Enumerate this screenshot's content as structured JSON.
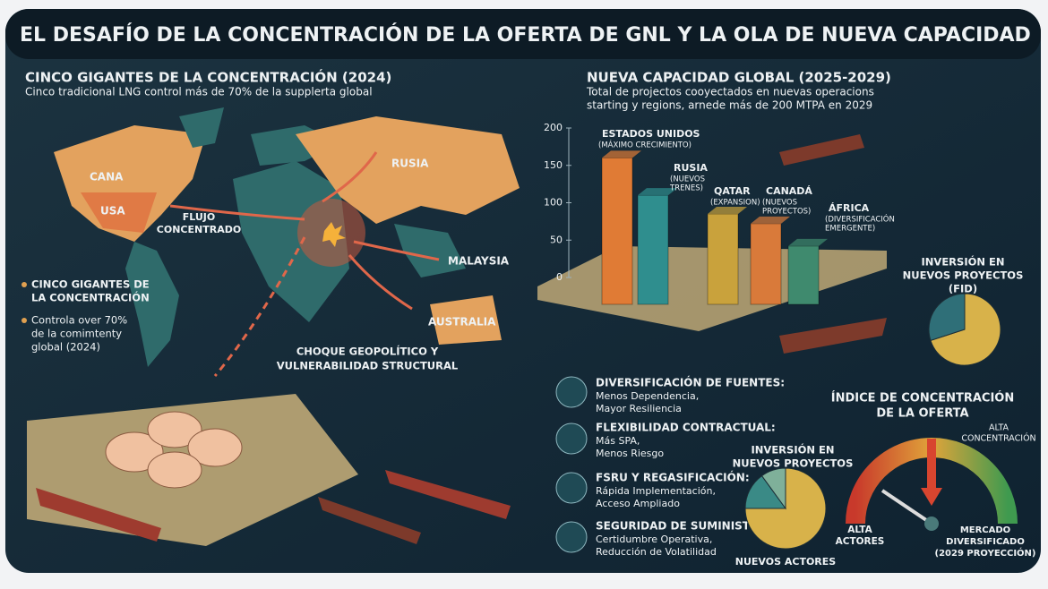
{
  "title": "EL DESAFÍO DE LA CONCENTRACIÓN DE LA OFERTA DE GNL Y LA OLA DE NUEVA CAPACIDAD",
  "left": {
    "heading": "CINCO GIGANTES DE LA CONCENTRACIÓN (2024)",
    "subtitle": "Cinco tradicional LNG control más de  70% de la supplerta global",
    "map_labels": [
      "CANA",
      "USA",
      "RUSIA",
      "MALAYSIA",
      "AUSTRALIA"
    ],
    "flow_label": [
      "FLUJO",
      "CONCENTRADO"
    ],
    "bullets": [
      [
        "CINCO GIGANTES DE",
        "LA CONCENTRACIÓN"
      ],
      [
        "Controla over 70%",
        "de la comimtenty",
        "global (2024)"
      ]
    ],
    "shock_label": [
      "CHOQUE GEOPOLÍTICO Y",
      "VULNERABILIDAD STRUCTURAL"
    ]
  },
  "right": {
    "heading": "NUEVA CAPACIDAD GLOBAL (2025-2029)",
    "subtitle": [
      "Total de projectos cooyectados en nuevas operacions",
      "starting y regions, arnede más de 200 MTPA en 2029"
    ],
    "chart": {
      "type": "bar",
      "categories": [
        "ESTADOS UNIDOS",
        "RUSIA",
        "QATAR",
        "CANADÁ",
        "ÁFRICA"
      ],
      "notes": [
        [
          "(MÁXIMO CRECIMIENTO)"
        ],
        [
          "(NUEVOS",
          "TRENES)"
        ],
        [
          "(EXPANSION)"
        ],
        [
          "(NUEVOS",
          "PROYECTOS)"
        ],
        [
          "(DIVERSIFICACIÓN",
          "EMERGENTE)"
        ]
      ],
      "values": [
        160,
        110,
        85,
        72,
        42
      ],
      "colors": [
        "#e07b35",
        "#2f8e8e",
        "#c9a23c",
        "#d97a3a",
        "#3f8a6e"
      ],
      "ylim": [
        0,
        200
      ],
      "yticks": [
        0,
        50,
        100,
        150,
        200
      ]
    },
    "features": [
      {
        "title": "DIVERSIFICACIÓN DE FUENTES:",
        "lines": [
          "Menos Dependencia,",
          "Mayor Resiliencia"
        ]
      },
      {
        "title": "FLEXIBILIDAD CONTRACTUAL:",
        "lines": [
          "Más SPA,",
          "Menos Riesgo"
        ]
      },
      {
        "title": "FSRU Y REGASIFICACIÓN:",
        "lines": [
          "Rápida Implementación,",
          "Acceso Ampliado"
        ]
      },
      {
        "title": "SEGURIDAD DE SUMINISTRO:",
        "lines": [
          "Certidumbre Operativa,",
          "Reducción de Volatilidad"
        ]
      }
    ],
    "fid": {
      "label": [
        "INVERSIÓN EN",
        "NUEVOS PROYECTOS",
        "(FID)"
      ],
      "type": "pie",
      "values": [
        70,
        30
      ],
      "colors": [
        "#d8b24a",
        "#2f6f78"
      ]
    },
    "investment": {
      "label": [
        "INVERSIÓN EN",
        "NUEVOS PROYECTOS"
      ],
      "footer": "NUEVOS ACTORES",
      "type": "pie",
      "values": [
        75,
        15,
        10
      ],
      "colors": [
        "#d8b24a",
        "#3a8a86",
        "#7fb09a"
      ]
    },
    "gauge": {
      "title": [
        "ÍNDICE DE CONCENTRACIÓN",
        "DE LA OFERTA"
      ],
      "high_label": [
        "ALTA",
        "CONCENTRACIÓN"
      ],
      "left_label": [
        "ALTA",
        "ACTORES"
      ],
      "right_label": [
        "MERCADO",
        "DIVERSIFICADO",
        "(2029 PROYECCIÓN)"
      ]
    }
  }
}
